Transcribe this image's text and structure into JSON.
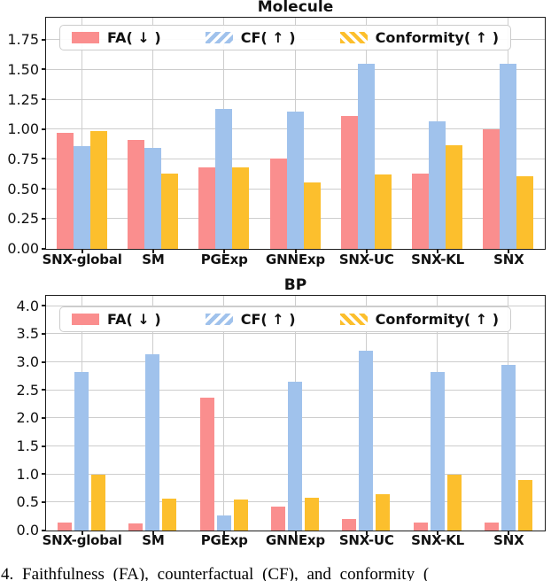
{
  "caption": {
    "text": "4.  Faithfulness (FA), counterfactual (CF), and conformity ("
  },
  "colors": {
    "fa": "#FA8E8E",
    "cf": "#A0C2EC",
    "conformity": "#FCBF2D",
    "grid": "#cdcdcd",
    "spine": "#1c1c1c"
  },
  "chart_data": [
    {
      "type": "bar",
      "title": "Molecule",
      "xlabel": "",
      "ylabel": "",
      "grid": true,
      "legend_position": "upper center",
      "ylim": [
        0,
        1.93
      ],
      "yticks": [
        0,
        0.25,
        0.5,
        0.75,
        1.0,
        1.25,
        1.5,
        1.75
      ],
      "ytick_labels": [
        "0.00",
        "0.25",
        "0.50",
        "0.75",
        "1.00",
        "1.25",
        "1.50",
        "1.75"
      ],
      "categories": [
        "SNX-global",
        "SM",
        "PGExp",
        "GNNExp",
        "SNX-UC",
        "SNX-KL",
        "SNX"
      ],
      "series": [
        {
          "name": "FA( ↓ )",
          "key": "FA",
          "color": "#FA8E8E",
          "hatch": "none",
          "values": [
            0.97,
            0.91,
            0.68,
            0.76,
            1.11,
            0.63,
            1.0
          ]
        },
        {
          "name": "CF( ↑ )",
          "key": "CF",
          "color": "#A0C2EC",
          "hatch": "/",
          "values": [
            0.86,
            0.85,
            1.17,
            1.15,
            1.55,
            1.07,
            1.55
          ]
        },
        {
          "name": "Conformity( ↑ )",
          "key": "Conformity",
          "color": "#FCBF2D",
          "hatch": "\\",
          "values": [
            0.99,
            0.63,
            0.68,
            0.56,
            0.62,
            0.87,
            0.61
          ]
        }
      ]
    },
    {
      "type": "bar",
      "title": "BP",
      "xlabel": "",
      "ylabel": "",
      "grid": true,
      "legend_position": "upper center",
      "ylim": [
        0,
        4.17
      ],
      "yticks": [
        0,
        0.5,
        1.0,
        1.5,
        2.0,
        2.5,
        3.0,
        3.5,
        4.0
      ],
      "ytick_labels": [
        "0.0",
        "0.5",
        "1.0",
        "1.5",
        "2.0",
        "2.5",
        "3.0",
        "3.5",
        "4.0"
      ],
      "categories": [
        "SNX-global",
        "SM",
        "PGExp",
        "GNNExp",
        "SNX-UC",
        "SNX-KL",
        "SNX"
      ],
      "series": [
        {
          "name": "FA( ↓ )",
          "key": "FA",
          "color": "#FA8E8E",
          "hatch": "none",
          "values": [
            0.15,
            0.13,
            2.37,
            0.42,
            0.2,
            0.15,
            0.15
          ]
        },
        {
          "name": "CF( ↑ )",
          "key": "CF",
          "color": "#A0C2EC",
          "hatch": "/",
          "values": [
            2.83,
            3.15,
            0.27,
            2.65,
            3.2,
            2.83,
            2.95
          ]
        },
        {
          "name": "Conformity( ↑ )",
          "key": "Conformity",
          "color": "#FCBF2D",
          "hatch": "\\",
          "values": [
            1.0,
            0.57,
            0.55,
            0.58,
            0.65,
            1.0,
            0.9
          ]
        }
      ]
    }
  ]
}
